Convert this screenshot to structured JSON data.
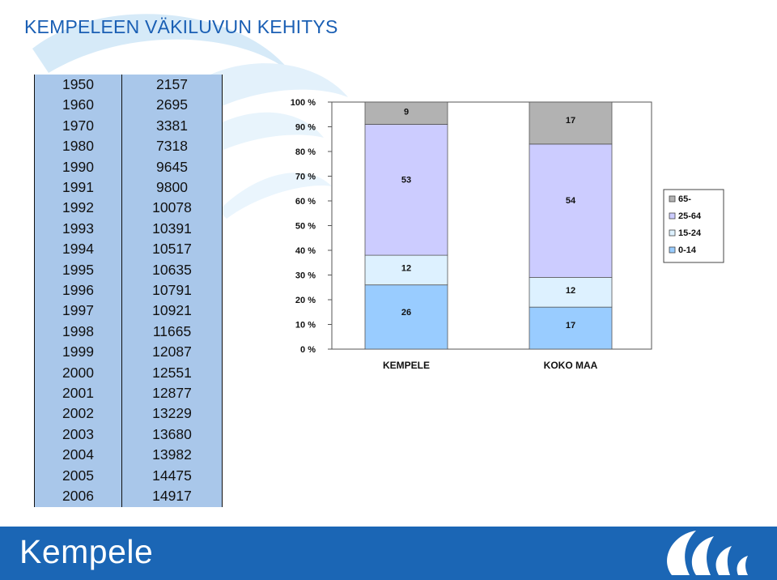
{
  "page": {
    "title": "KEMPELEEN VÄKILUVUN KEHITYS",
    "brand": "Kempele"
  },
  "population_table": {
    "rows": [
      {
        "year": "1950",
        "value": "2157"
      },
      {
        "year": "1960",
        "value": "2695"
      },
      {
        "year": "1970",
        "value": "3381"
      },
      {
        "year": "1980",
        "value": "7318"
      },
      {
        "year": "1990",
        "value": "9645"
      },
      {
        "year": "1991",
        "value": "9800"
      },
      {
        "year": "1992",
        "value": "10078"
      },
      {
        "year": "1993",
        "value": "10391"
      },
      {
        "year": "1994",
        "value": "10517"
      },
      {
        "year": "1995",
        "value": "10635"
      },
      {
        "year": "1996",
        "value": "10791"
      },
      {
        "year": "1997",
        "value": "10921"
      },
      {
        "year": "1998",
        "value": "11665"
      },
      {
        "year": "1999",
        "value": "12087"
      },
      {
        "year": "2000",
        "value": "12551"
      },
      {
        "year": "2001",
        "value": "12877"
      },
      {
        "year": "2002",
        "value": "13229"
      },
      {
        "year": "2003",
        "value": "13680"
      },
      {
        "year": "2004",
        "value": "13982"
      },
      {
        "year": "2005",
        "value": "14475"
      },
      {
        "year": "2006",
        "value": "14917"
      }
    ]
  },
  "chart_data": [
    {
      "type": "table",
      "columns": [
        "",
        ""
      ],
      "rows": [
        [
          "1950",
          2157
        ],
        [
          "1960",
          2695
        ],
        [
          "1970",
          3381
        ],
        [
          "1980",
          7318
        ],
        [
          "1990",
          9645
        ],
        [
          "1991",
          9800
        ],
        [
          "1992",
          10078
        ],
        [
          "1993",
          10391
        ],
        [
          "1994",
          10517
        ],
        [
          "1995",
          10635
        ],
        [
          "1996",
          10791
        ],
        [
          "1997",
          10921
        ],
        [
          "1998",
          11665
        ],
        [
          "1999",
          12087
        ],
        [
          "2000",
          12551
        ],
        [
          "2001",
          12877
        ],
        [
          "2002",
          13229
        ],
        [
          "2003",
          13680
        ],
        [
          "2004",
          13982
        ],
        [
          "2005",
          14475
        ],
        [
          "2006",
          14917
        ]
      ]
    },
    {
      "type": "bar",
      "stacked": "percent",
      "categories": [
        "KEMPELE",
        "KOKO MAA"
      ],
      "series": [
        {
          "name": "0-14",
          "values": [
            26,
            17
          ],
          "color": "#99ccff"
        },
        {
          "name": "15-24",
          "values": [
            12,
            12
          ],
          "color": "#ddf1ff"
        },
        {
          "name": "25-64",
          "values": [
            53,
            54
          ],
          "color": "#ccccff"
        },
        {
          "name": "65-",
          "values": [
            9,
            17
          ],
          "color": "#b2b2b2"
        }
      ],
      "yticks": [
        "0 %",
        "10 %",
        "20 %",
        "30 %",
        "40 %",
        "50 %",
        "60 %",
        "70 %",
        "80 %",
        "90 %",
        "100 %"
      ],
      "ylim": [
        0,
        100
      ],
      "legend_position": "right",
      "legend_order": [
        "65-",
        "25-64",
        "15-24",
        "0-14"
      ],
      "grid": false
    }
  ],
  "colors": {
    "title": "#1a5fb4",
    "table_bg": "#a9c7ea",
    "footer_bg": "#1b66b5",
    "watermark": "#d6eaf8"
  }
}
